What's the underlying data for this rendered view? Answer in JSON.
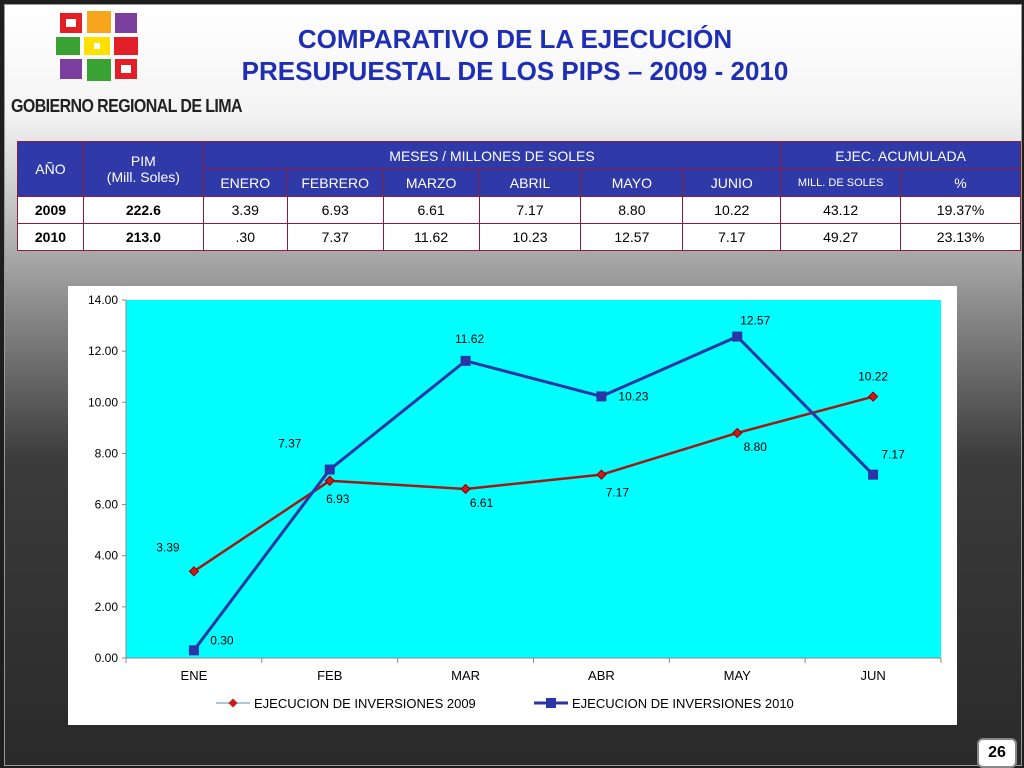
{
  "logo": {
    "text": "GOBIERNO REGIONAL DE LIMA"
  },
  "title": {
    "line1": "COMPARATIVO DE LA EJECUCIÓN",
    "line2": "PRESUPUESTAL DE LOS PIPS – 2009 - 2010"
  },
  "table": {
    "headers": {
      "year": "AÑO",
      "pim_line1": "PIM",
      "pim_line2": "(Mill. Soles)",
      "months_group": "MESES / MILLONES DE SOLES",
      "acum_group": "EJEC. ACUMULADA",
      "months": [
        "ENERO",
        "FEBRERO",
        "MARZO",
        "ABRIL",
        "MAYO",
        "JUNIO"
      ],
      "acum_mill": "MILL. DE SOLES",
      "acum_pct": "%"
    },
    "rows": [
      {
        "year": "2009",
        "pim": "222.6",
        "months": [
          "3.39",
          "6.93",
          "6.61",
          "7.17",
          "8.80",
          "10.22"
        ],
        "acum": "43.12",
        "pct": "19.37%"
      },
      {
        "year": "2010",
        "pim": "213.0",
        "months": [
          ".30",
          "7.37",
          "11.62",
          "10.23",
          "12.57",
          "7.17"
        ],
        "acum": "49.27",
        "pct": "23.13%"
      }
    ]
  },
  "chart_data": {
    "type": "line",
    "categories": [
      "ENE",
      "FEB",
      "MAR",
      "ABR",
      "MAY",
      "JUN"
    ],
    "series": [
      {
        "name": "EJECUCION DE INVERSIONES 2009",
        "values": [
          3.39,
          6.93,
          6.61,
          7.17,
          8.8,
          10.22
        ],
        "color": "#a01a14",
        "marker": "diamond",
        "labels": [
          "3.39",
          "6.93",
          "6.61",
          "7.17",
          "8.80",
          "10.22"
        ]
      },
      {
        "name": "EJECUCION DE INVERSIONES 2010",
        "values": [
          0.3,
          7.37,
          11.62,
          10.23,
          12.57,
          7.17
        ],
        "color": "#2b35a8",
        "marker": "square",
        "labels": [
          "0.30",
          "7.37",
          "11.62",
          "10.23",
          "12.57",
          "7.17"
        ]
      }
    ],
    "yticks": [
      "0.00",
      "2.00",
      "4.00",
      "6.00",
      "8.00",
      "10.00",
      "12.00",
      "14.00"
    ],
    "ylim": [
      0,
      14
    ],
    "plot_background": "#00ffff",
    "legend_position": "bottom",
    "grid": false
  },
  "page_number": "26"
}
